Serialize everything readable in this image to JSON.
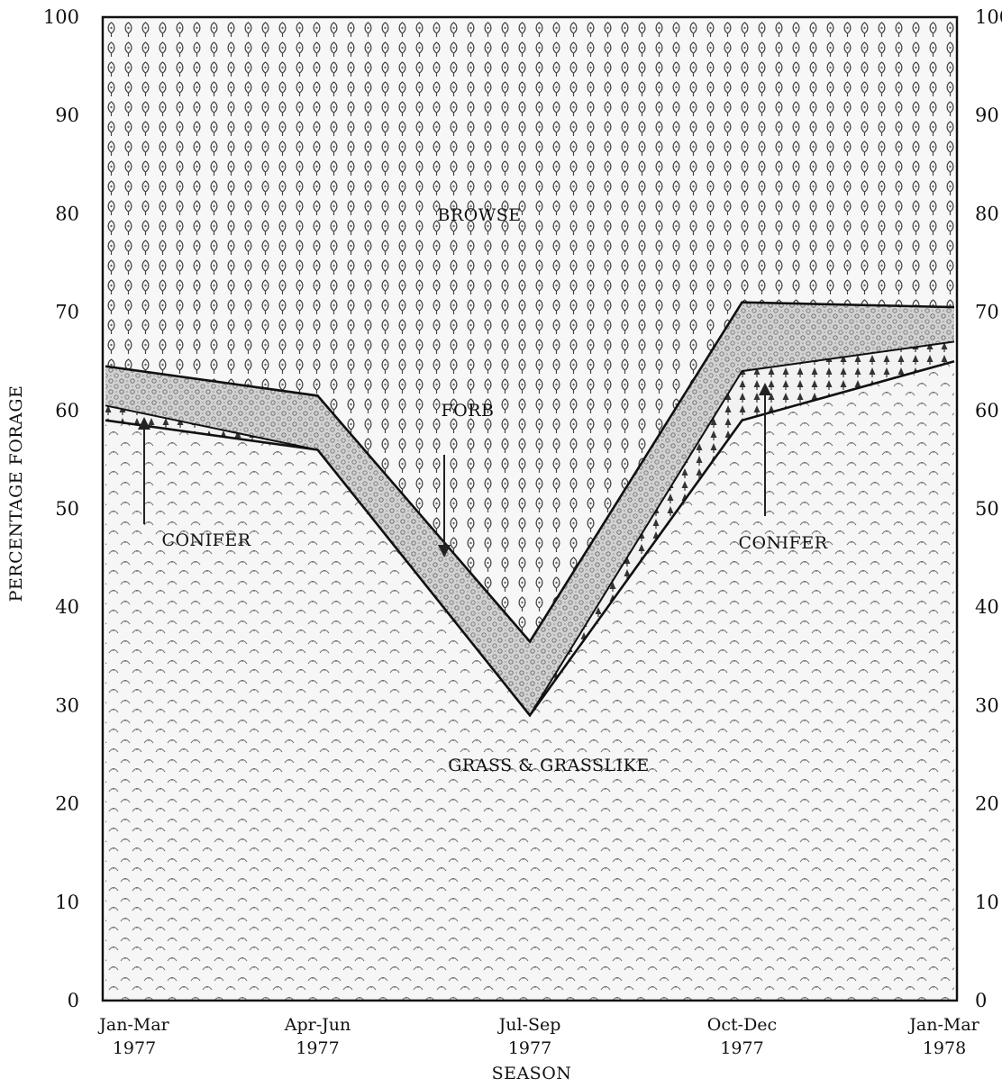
{
  "chart_data": {
    "type": "area",
    "title": "",
    "xlabel": "SEASON",
    "ylabel": "PERCENTAGE FORAGE",
    "ylim": [
      0,
      100
    ],
    "yticks": [
      0,
      10,
      20,
      30,
      40,
      50,
      60,
      70,
      80,
      90,
      100
    ],
    "y_axis_both_sides": true,
    "grid": false,
    "legend": "none",
    "categories": [
      {
        "line1": "Jan-Mar",
        "line2": "1977"
      },
      {
        "line1": "Apr-Jun",
        "line2": "1977"
      },
      {
        "line1": "Jul-Sep",
        "line2": "1977"
      },
      {
        "line1": "Oct-Dec",
        "line2": "1977"
      },
      {
        "line1": "Jan-Mar",
        "line2": "1978"
      }
    ],
    "stack_boundaries": [
      {
        "upper_of": "GRASS & GRASSLIKE",
        "values": [
          59,
          56,
          29,
          59,
          65
        ]
      },
      {
        "upper_of": "CONIFER",
        "values": [
          60.5,
          56,
          29,
          64,
          67
        ]
      },
      {
        "upper_of": "FORB",
        "values": [
          64.5,
          61.5,
          36.5,
          71,
          70.5
        ]
      }
    ],
    "series": [
      {
        "name": "GRASS & GRASSLIKE",
        "values": [
          59,
          56,
          29,
          59,
          65
        ],
        "color": "#f4f4f4"
      },
      {
        "name": "CONIFER",
        "values": [
          1.5,
          0,
          0,
          5,
          2
        ],
        "color": "#dcdcdc"
      },
      {
        "name": "FORB",
        "values": [
          4,
          5.5,
          7.5,
          7,
          3.5
        ],
        "color": "#c4c4c4"
      },
      {
        "name": "BROWSE",
        "values": [
          35.5,
          38.5,
          63.5,
          29,
          29.5
        ],
        "color": "#eaeaea"
      }
    ],
    "labels": {
      "browse": "BROWSE",
      "forb": "FORB",
      "conifer_left": "CONIFER",
      "conifer_right": "CONIFER",
      "grass": "GRASS & GRASSLIKE"
    }
  }
}
